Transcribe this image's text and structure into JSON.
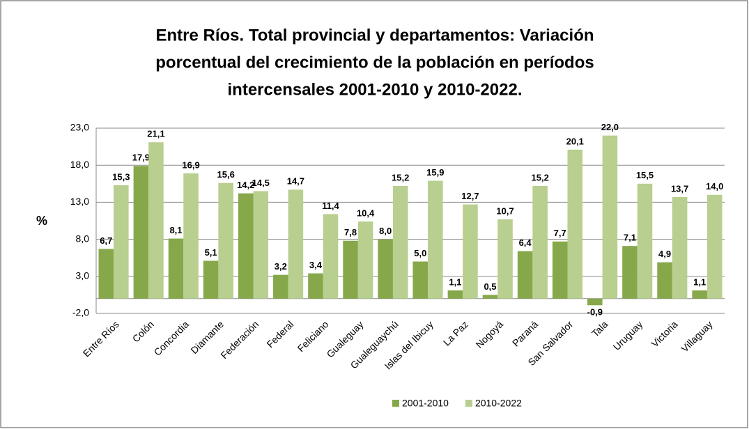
{
  "chart_data": {
    "type": "bar",
    "title": [
      "Entre Ríos. Total provincial y departamentos: Variación",
      "porcentual del crecimiento de la población en períodos",
      "intercensales 2001-2010 y 2010-2022."
    ],
    "y_label": "%",
    "categories": [
      "Entre Ríos",
      "Colón",
      "Concordia",
      "Diamante",
      "Federación",
      "Federal",
      "Feliciano",
      "Gualeguay",
      "Gualeguaychú",
      "Islas del Ibicuy",
      "La Paz",
      "Nogoyá",
      "Paraná",
      "San Salvador",
      "Tala",
      "Uruguay",
      "Victoria",
      "Villaguay"
    ],
    "series": [
      {
        "name": "2001-2010",
        "color": "#86a84a",
        "values": [
          6.7,
          17.9,
          8.1,
          5.1,
          14.2,
          3.2,
          3.4,
          7.8,
          8.0,
          5.0,
          1.1,
          0.5,
          6.4,
          7.7,
          -0.9,
          7.1,
          4.9,
          1.1
        ],
        "value_labels": [
          "6,7",
          "17,9",
          "8,1",
          "5,1",
          "14,2",
          "3,2",
          "3,4",
          "7,8",
          "8,0",
          "5,0",
          "1,1",
          "0,5",
          "6,4",
          "7,7",
          "-0,9",
          "7,1",
          "4,9",
          "1,1"
        ]
      },
      {
        "name": "2010-2022",
        "color": "#b8cf8f",
        "values": [
          15.3,
          21.1,
          16.9,
          15.6,
          14.5,
          14.7,
          11.4,
          10.4,
          15.2,
          15.9,
          12.7,
          10.7,
          15.2,
          20.1,
          22.0,
          15.5,
          13.7,
          14.0
        ],
        "value_labels": [
          "15,3",
          "21,1",
          "16,9",
          "15,6",
          "14,5",
          "14,7",
          "11,4",
          "10,4",
          "15,2",
          "15,9",
          "12,7",
          "10,7",
          "15,2",
          "20,1",
          "22,0",
          "15,5",
          "13,7",
          "14,0"
        ]
      }
    ],
    "ylim": [
      -2,
      23
    ],
    "yticks": [
      {
        "value": -2,
        "label": "-2,0"
      },
      {
        "value": 3,
        "label": "3,0"
      },
      {
        "value": 8,
        "label": "8,0"
      },
      {
        "value": 13,
        "label": "13,0"
      },
      {
        "value": 18,
        "label": "18,0"
      },
      {
        "value": 23,
        "label": "23,0"
      }
    ],
    "grid": true,
    "legend": "bottom"
  }
}
